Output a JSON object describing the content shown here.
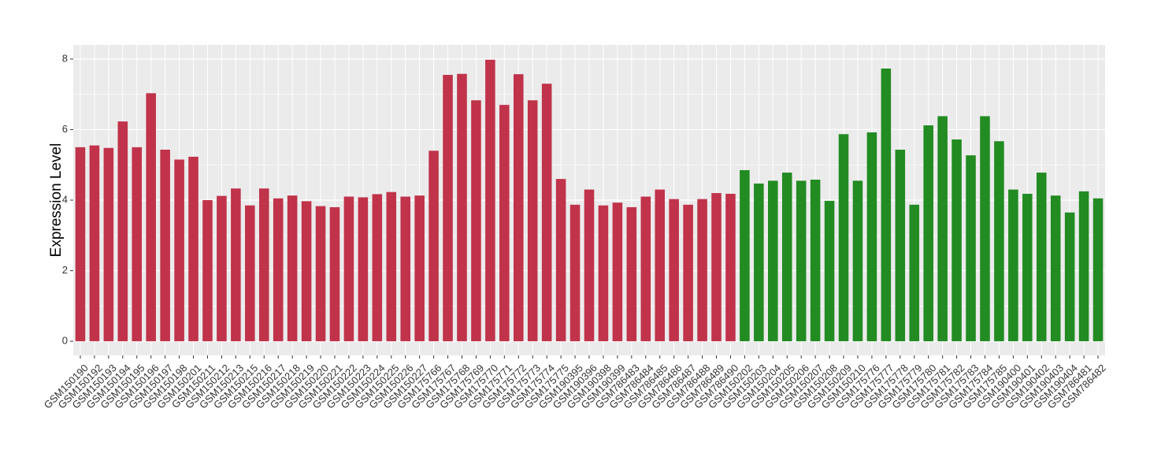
{
  "chart_data": {
    "type": "bar",
    "y_label": "Expression Level",
    "categories": [
      "GSM150190",
      "GSM150192",
      "GSM150193",
      "GSM150194",
      "GSM150195",
      "GSM150196",
      "GSM150197",
      "GSM150198",
      "GSM150201",
      "GSM150211",
      "GSM150212",
      "GSM150213",
      "GSM150215",
      "GSM150216",
      "GSM150217",
      "GSM150218",
      "GSM150219",
      "GSM150220",
      "GSM150221",
      "GSM150222",
      "GSM150223",
      "GSM150224",
      "GSM150225",
      "GSM150226",
      "GSM150227",
      "GSM175766",
      "GSM175767",
      "GSM175768",
      "GSM175769",
      "GSM175770",
      "GSM175771",
      "GSM175772",
      "GSM175773",
      "GSM175774",
      "GSM175775",
      "GSM190395",
      "GSM190396",
      "GSM190398",
      "GSM190399",
      "GSM786483",
      "GSM786484",
      "GSM786485",
      "GSM786486",
      "GSM786487",
      "GSM786488",
      "GSM786489",
      "GSM786490",
      "GSM150202",
      "GSM150203",
      "GSM150204",
      "GSM150205",
      "GSM150206",
      "GSM150207",
      "GSM150208",
      "GSM150209",
      "GSM150210",
      "GSM175776",
      "GSM175777",
      "GSM175778",
      "GSM175779",
      "GSM175780",
      "GSM175781",
      "GSM175782",
      "GSM175783",
      "GSM175784",
      "GSM175785",
      "GSM190400",
      "GSM190401",
      "GSM190402",
      "GSM190403",
      "GSM190404",
      "GSM786481",
      "GSM786482"
    ],
    "values": [
      5.5,
      5.55,
      5.48,
      6.23,
      5.5,
      7.03,
      5.43,
      5.15,
      5.23,
      4.0,
      4.12,
      4.33,
      3.85,
      4.33,
      4.05,
      4.13,
      3.97,
      3.83,
      3.8,
      4.1,
      4.08,
      4.17,
      4.23,
      4.1,
      4.13,
      5.4,
      7.55,
      7.58,
      6.83,
      7.98,
      6.7,
      7.57,
      6.83,
      7.3,
      4.6,
      3.87,
      4.3,
      3.85,
      3.93,
      3.8,
      4.1,
      4.3,
      4.03,
      3.87,
      4.03,
      4.2,
      4.18,
      4.85,
      4.47,
      4.55,
      4.78,
      4.55,
      4.58,
      3.98,
      5.87,
      4.55,
      5.92,
      7.73,
      5.43,
      3.87,
      6.12,
      6.38,
      5.72,
      5.27,
      6.38,
      5.67,
      4.3,
      4.18,
      4.78,
      4.13,
      3.65,
      4.25,
      4.05
    ],
    "colors": [
      "#c0334a",
      "#c0334a",
      "#c0334a",
      "#c0334a",
      "#c0334a",
      "#c0334a",
      "#c0334a",
      "#c0334a",
      "#c0334a",
      "#c0334a",
      "#c0334a",
      "#c0334a",
      "#c0334a",
      "#c0334a",
      "#c0334a",
      "#c0334a",
      "#c0334a",
      "#c0334a",
      "#c0334a",
      "#c0334a",
      "#c0334a",
      "#c0334a",
      "#c0334a",
      "#c0334a",
      "#c0334a",
      "#c0334a",
      "#c0334a",
      "#c0334a",
      "#c0334a",
      "#c0334a",
      "#c0334a",
      "#c0334a",
      "#c0334a",
      "#c0334a",
      "#c0334a",
      "#c0334a",
      "#c0334a",
      "#c0334a",
      "#c0334a",
      "#c0334a",
      "#c0334a",
      "#c0334a",
      "#c0334a",
      "#c0334a",
      "#c0334a",
      "#c0334a",
      "#c0334a",
      "#228b22",
      "#228b22",
      "#228b22",
      "#228b22",
      "#228b22",
      "#228b22",
      "#228b22",
      "#228b22",
      "#228b22",
      "#228b22",
      "#228b22",
      "#228b22",
      "#228b22",
      "#228b22",
      "#228b22",
      "#228b22",
      "#228b22",
      "#228b22",
      "#228b22",
      "#228b22",
      "#228b22",
      "#228b22",
      "#228b22",
      "#228b22",
      "#228b22",
      "#228b22"
    ],
    "ylim": [
      -0.4,
      8.4
    ],
    "yticks": [
      0,
      2,
      4,
      6,
      8
    ],
    "grid": true
  }
}
